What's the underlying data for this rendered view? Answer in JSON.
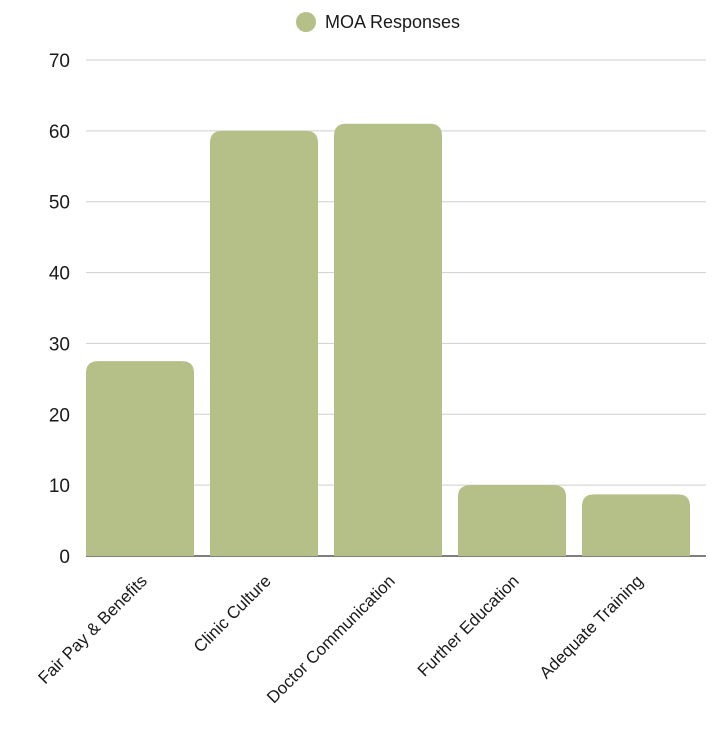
{
  "chart_data": {
    "type": "bar",
    "title": "",
    "xlabel": "",
    "ylabel": "",
    "categories": [
      "Fair Pay & Benefits",
      "Clinic Culture",
      "Doctor Communication",
      "Further Education",
      "Adequate Training"
    ],
    "series": [
      {
        "name": "MOA Responses",
        "values": [
          27.5,
          60,
          61,
          10,
          8.7
        ]
      }
    ],
    "ylim": [
      0,
      70
    ],
    "yticks": [
      0,
      10,
      20,
      30,
      40,
      50,
      60,
      70
    ],
    "grid": true,
    "legend_position": "top-center",
    "colors": {
      "bar": "#b5bf88",
      "grid": "#cfcfcf",
      "baseline": "#333333"
    }
  }
}
